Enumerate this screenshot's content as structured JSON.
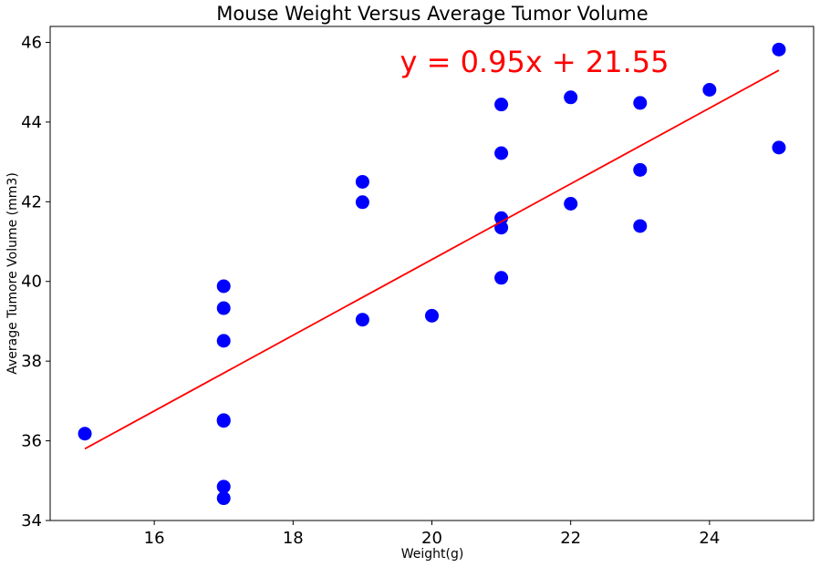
{
  "chart_data": {
    "type": "scatter",
    "title": "Mouse Weight Versus Average Tumor Volume",
    "xlabel": "Weight(g)",
    "ylabel": "Average Tumore Volume (mm3)",
    "xlim": [
      14.5,
      25.5
    ],
    "ylim": [
      34,
      46.4
    ],
    "xticks": [
      16,
      18,
      20,
      22,
      24
    ],
    "yticks": [
      34,
      36,
      38,
      40,
      42,
      44,
      46
    ],
    "grid": false,
    "points": [
      {
        "x": 15,
        "y": 36.18
      },
      {
        "x": 17,
        "y": 39.88
      },
      {
        "x": 17,
        "y": 39.33
      },
      {
        "x": 17,
        "y": 38.51
      },
      {
        "x": 17,
        "y": 36.52
      },
      {
        "x": 17,
        "y": 36.5
      },
      {
        "x": 17,
        "y": 34.85
      },
      {
        "x": 17,
        "y": 34.56
      },
      {
        "x": 19,
        "y": 42.5
      },
      {
        "x": 19,
        "y": 41.99
      },
      {
        "x": 19,
        "y": 39.04
      },
      {
        "x": 20,
        "y": 39.14
      },
      {
        "x": 21,
        "y": 44.44
      },
      {
        "x": 21,
        "y": 43.22
      },
      {
        "x": 21,
        "y": 41.59
      },
      {
        "x": 21,
        "y": 41.35
      },
      {
        "x": 21,
        "y": 40.09
      },
      {
        "x": 22,
        "y": 44.62
      },
      {
        "x": 22,
        "y": 41.95
      },
      {
        "x": 23,
        "y": 44.48
      },
      {
        "x": 23,
        "y": 42.8
      },
      {
        "x": 23,
        "y": 41.39
      },
      {
        "x": 24,
        "y": 44.81
      },
      {
        "x": 25,
        "y": 45.82
      },
      {
        "x": 25,
        "y": 43.36
      }
    ],
    "regression": {
      "slope": 0.95,
      "intercept": 21.55,
      "x_range": [
        15,
        25
      ],
      "equation": "y = 0.95x + 21.55"
    },
    "colors": {
      "points": "#0000ff",
      "line": "#ff0000",
      "equation": "#ff0000"
    }
  }
}
